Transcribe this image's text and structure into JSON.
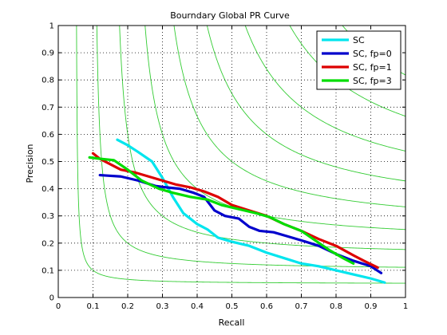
{
  "chart_data": {
    "type": "line",
    "title": "Bourndary Global PR Curve",
    "xlabel": "Recall",
    "ylabel": "Precision",
    "xlim": [
      0,
      1
    ],
    "ylim": [
      0,
      1
    ],
    "xticks": [
      "0",
      "0.1",
      "0.2",
      "0.3",
      "0.4",
      "0.5",
      "0.6",
      "0.7",
      "0.8",
      "0.9",
      "1"
    ],
    "yticks": [
      "0",
      "0.1",
      "0.2",
      "0.3",
      "0.4",
      "0.5",
      "0.6",
      "0.7",
      "0.8",
      "0.9",
      "1"
    ],
    "grid": true,
    "legend_position": "top-right",
    "iso_f_contours": {
      "color": "#33cc33",
      "levels": [
        0.1,
        0.2,
        0.3,
        0.4,
        0.5,
        0.6,
        0.7,
        0.8,
        0.9
      ]
    },
    "series": [
      {
        "name": "SC",
        "color": "#00e5ee",
        "points": [
          [
            0.17,
            0.58
          ],
          [
            0.2,
            0.56
          ],
          [
            0.23,
            0.535
          ],
          [
            0.27,
            0.5
          ],
          [
            0.3,
            0.44
          ],
          [
            0.33,
            0.37
          ],
          [
            0.36,
            0.31
          ],
          [
            0.4,
            0.27
          ],
          [
            0.43,
            0.25
          ],
          [
            0.46,
            0.22
          ],
          [
            0.5,
            0.205
          ],
          [
            0.55,
            0.19
          ],
          [
            0.6,
            0.165
          ],
          [
            0.65,
            0.145
          ],
          [
            0.7,
            0.125
          ],
          [
            0.75,
            0.115
          ],
          [
            0.8,
            0.1
          ],
          [
            0.85,
            0.085
          ],
          [
            0.9,
            0.07
          ],
          [
            0.94,
            0.055
          ]
        ]
      },
      {
        "name": "SC, fp=0",
        "color": "#0000cc",
        "points": [
          [
            0.12,
            0.45
          ],
          [
            0.18,
            0.445
          ],
          [
            0.23,
            0.43
          ],
          [
            0.28,
            0.41
          ],
          [
            0.31,
            0.405
          ],
          [
            0.35,
            0.4
          ],
          [
            0.39,
            0.385
          ],
          [
            0.42,
            0.37
          ],
          [
            0.45,
            0.32
          ],
          [
            0.48,
            0.3
          ],
          [
            0.52,
            0.29
          ],
          [
            0.55,
            0.26
          ],
          [
            0.58,
            0.245
          ],
          [
            0.62,
            0.24
          ],
          [
            0.66,
            0.225
          ],
          [
            0.7,
            0.21
          ],
          [
            0.75,
            0.19
          ],
          [
            0.8,
            0.16
          ],
          [
            0.85,
            0.135
          ],
          [
            0.9,
            0.115
          ],
          [
            0.93,
            0.09
          ]
        ]
      },
      {
        "name": "SC, fp=1",
        "color": "#dd0000",
        "points": [
          [
            0.1,
            0.53
          ],
          [
            0.12,
            0.51
          ],
          [
            0.15,
            0.49
          ],
          [
            0.18,
            0.47
          ],
          [
            0.22,
            0.46
          ],
          [
            0.26,
            0.445
          ],
          [
            0.3,
            0.43
          ],
          [
            0.34,
            0.415
          ],
          [
            0.38,
            0.405
          ],
          [
            0.42,
            0.39
          ],
          [
            0.46,
            0.37
          ],
          [
            0.5,
            0.34
          ],
          [
            0.55,
            0.32
          ],
          [
            0.6,
            0.3
          ],
          [
            0.65,
            0.27
          ],
          [
            0.7,
            0.245
          ],
          [
            0.75,
            0.215
          ],
          [
            0.8,
            0.19
          ],
          [
            0.85,
            0.155
          ],
          [
            0.88,
            0.135
          ],
          [
            0.92,
            0.11
          ]
        ]
      },
      {
        "name": "SC, fp=3",
        "color": "#00dd00",
        "points": [
          [
            0.09,
            0.515
          ],
          [
            0.12,
            0.51
          ],
          [
            0.16,
            0.505
          ],
          [
            0.2,
            0.47
          ],
          [
            0.24,
            0.43
          ],
          [
            0.29,
            0.4
          ],
          [
            0.33,
            0.385
          ],
          [
            0.38,
            0.37
          ],
          [
            0.43,
            0.36
          ],
          [
            0.47,
            0.34
          ],
          [
            0.52,
            0.325
          ],
          [
            0.57,
            0.31
          ],
          [
            0.61,
            0.295
          ],
          [
            0.65,
            0.27
          ],
          [
            0.7,
            0.245
          ],
          [
            0.74,
            0.21
          ],
          [
            0.78,
            0.175
          ],
          [
            0.82,
            0.145
          ],
          [
            0.85,
            0.125
          ]
        ]
      }
    ]
  }
}
